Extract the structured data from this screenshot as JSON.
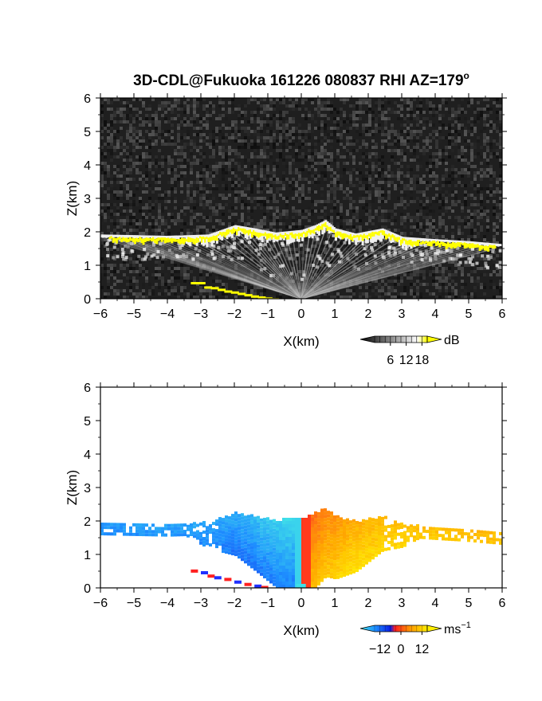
{
  "chart_data": [
    {
      "type": "heatmap",
      "title": "3D-CDL@Fukuoka 161226 080837 RHI AZ=179",
      "title_superscript": "o",
      "xlabel": "X(km)",
      "ylabel": "Z(km)",
      "xlim": [
        -6,
        6
      ],
      "ylim": [
        0,
        6
      ],
      "x_ticks": [
        "-6",
        "-5",
        "-4",
        "-3",
        "-2",
        "-1",
        "0",
        "1",
        "2",
        "3",
        "4",
        "5",
        "6"
      ],
      "y_ticks": [
        "0",
        "1",
        "2",
        "3",
        "4",
        "5",
        "6"
      ],
      "variable": "backscatter intensity",
      "colorbar": {
        "unit": "dB",
        "ticks": [
          "6",
          "12",
          "18"
        ],
        "range": [
          0,
          20
        ],
        "colors": [
          "#000000",
          "#ffffff",
          "#ffff00"
        ]
      },
      "layer_top_km": [
        [
          -6,
          1.92
        ],
        [
          -4,
          1.88
        ],
        [
          -2.8,
          1.92
        ],
        [
          -2,
          2.2
        ],
        [
          -1.4,
          2.1
        ],
        [
          -0.8,
          1.98
        ],
        [
          0,
          2.06
        ],
        [
          0.4,
          2.2
        ],
        [
          0.7,
          2.35
        ],
        [
          1.0,
          2.1
        ],
        [
          1.6,
          1.95
        ],
        [
          2.4,
          2.1
        ],
        [
          3,
          1.85
        ],
        [
          4,
          1.78
        ],
        [
          5,
          1.72
        ],
        [
          6,
          1.63
        ]
      ]
    },
    {
      "type": "heatmap",
      "xlabel": "X(km)",
      "ylabel": "Z(km)",
      "xlim": [
        -6,
        6
      ],
      "ylim": [
        0,
        6
      ],
      "x_ticks": [
        "-6",
        "-5",
        "-4",
        "-3",
        "-2",
        "-1",
        "0",
        "1",
        "2",
        "3",
        "4",
        "5",
        "6"
      ],
      "y_ticks": [
        "0",
        "1",
        "2",
        "3",
        "4",
        "5",
        "6"
      ],
      "variable": "radial velocity",
      "colorbar": {
        "unit": "ms",
        "unit_superscript": "−1",
        "ticks": [
          "−12",
          "0",
          "12"
        ],
        "range": [
          -15,
          15
        ]
      },
      "velocity_profile_ms": [
        [
          -6,
          -9
        ],
        [
          -2,
          -10
        ],
        [
          -0.3,
          -14
        ],
        [
          0,
          0
        ],
        [
          0.3,
          3
        ],
        [
          1.5,
          8
        ],
        [
          3,
          10
        ],
        [
          6,
          9
        ]
      ]
    }
  ]
}
